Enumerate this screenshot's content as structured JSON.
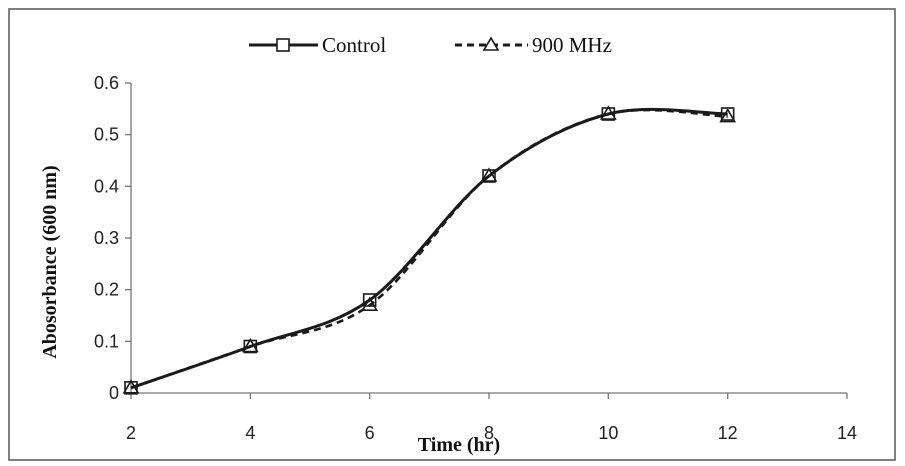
{
  "chart_data": {
    "type": "line",
    "title": "",
    "xlabel": "Time (hr)",
    "ylabel": "Abosorbance (600 nm)",
    "xlim": [
      2,
      14
    ],
    "ylim": [
      0,
      0.6
    ],
    "x_ticks": [
      "2",
      "4",
      "6",
      "8",
      "10",
      "12",
      "14"
    ],
    "y_ticks": [
      "0",
      "0.1",
      "0.2",
      "0.3",
      "0.4",
      "0.5",
      "0.6"
    ],
    "grid": false,
    "smooth": true,
    "legend_position": "top-center",
    "x": [
      2,
      4,
      6,
      8,
      10,
      12
    ],
    "series": [
      {
        "name": "Control",
        "values": [
          0.01,
          0.09,
          0.18,
          0.42,
          0.54,
          0.54
        ],
        "marker": "square",
        "line_style": "solid",
        "color": "#1a1a1a"
      },
      {
        "name": "900 MHz",
        "values": [
          0.01,
          0.09,
          0.17,
          0.42,
          0.54,
          0.535
        ],
        "marker": "triangle",
        "line_style": "dashed",
        "color": "#1a1a1a"
      }
    ]
  }
}
